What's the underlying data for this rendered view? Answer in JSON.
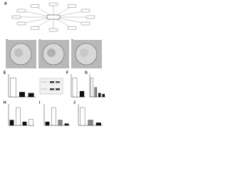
{
  "panels": [
    "A",
    "B",
    "C",
    "D"
  ],
  "chart_data": [
    {
      "type": "bar",
      "panel": "E",
      "values": [
        1.0,
        0.25,
        0.2
      ],
      "colors": [
        "#ffffff",
        "#111111",
        "#111111"
      ],
      "ylim": [
        0,
        1.2
      ]
    },
    {
      "type": "bar",
      "panel": "F",
      "values": [
        1.0,
        0.3
      ],
      "colors": [
        "#ffffff",
        "#111111"
      ],
      "ylim": [
        0,
        1.2
      ]
    },
    {
      "type": "bar",
      "panel": "G",
      "values": [
        1.0,
        0.5,
        0.2,
        0.15
      ],
      "colors": [
        "#ffffff",
        "#888888",
        "#111111",
        "#111111"
      ],
      "ylim": [
        0,
        1.2
      ]
    },
    {
      "type": "bar",
      "panel": "H",
      "values": [
        0.3,
        1.0,
        0.2,
        0.35
      ],
      "colors": [
        "#111111",
        "#ffffff",
        "#111111",
        "#ffffff"
      ],
      "ylim": [
        0,
        1.2
      ]
    },
    {
      "type": "bar",
      "panel": "I",
      "values": [
        0.2,
        1.0,
        0.3,
        0.1
      ],
      "colors": [
        "#111111",
        "#ffffff",
        "#888888",
        "#111111"
      ],
      "ylim": [
        0,
        1.2
      ]
    },
    {
      "type": "bar",
      "panel": "J",
      "values": [
        1.0,
        0.3,
        0.15
      ],
      "colors": [
        "#ffffff",
        "#888888",
        "#111111"
      ],
      "ylim": [
        0,
        1.2
      ]
    }
  ]
}
